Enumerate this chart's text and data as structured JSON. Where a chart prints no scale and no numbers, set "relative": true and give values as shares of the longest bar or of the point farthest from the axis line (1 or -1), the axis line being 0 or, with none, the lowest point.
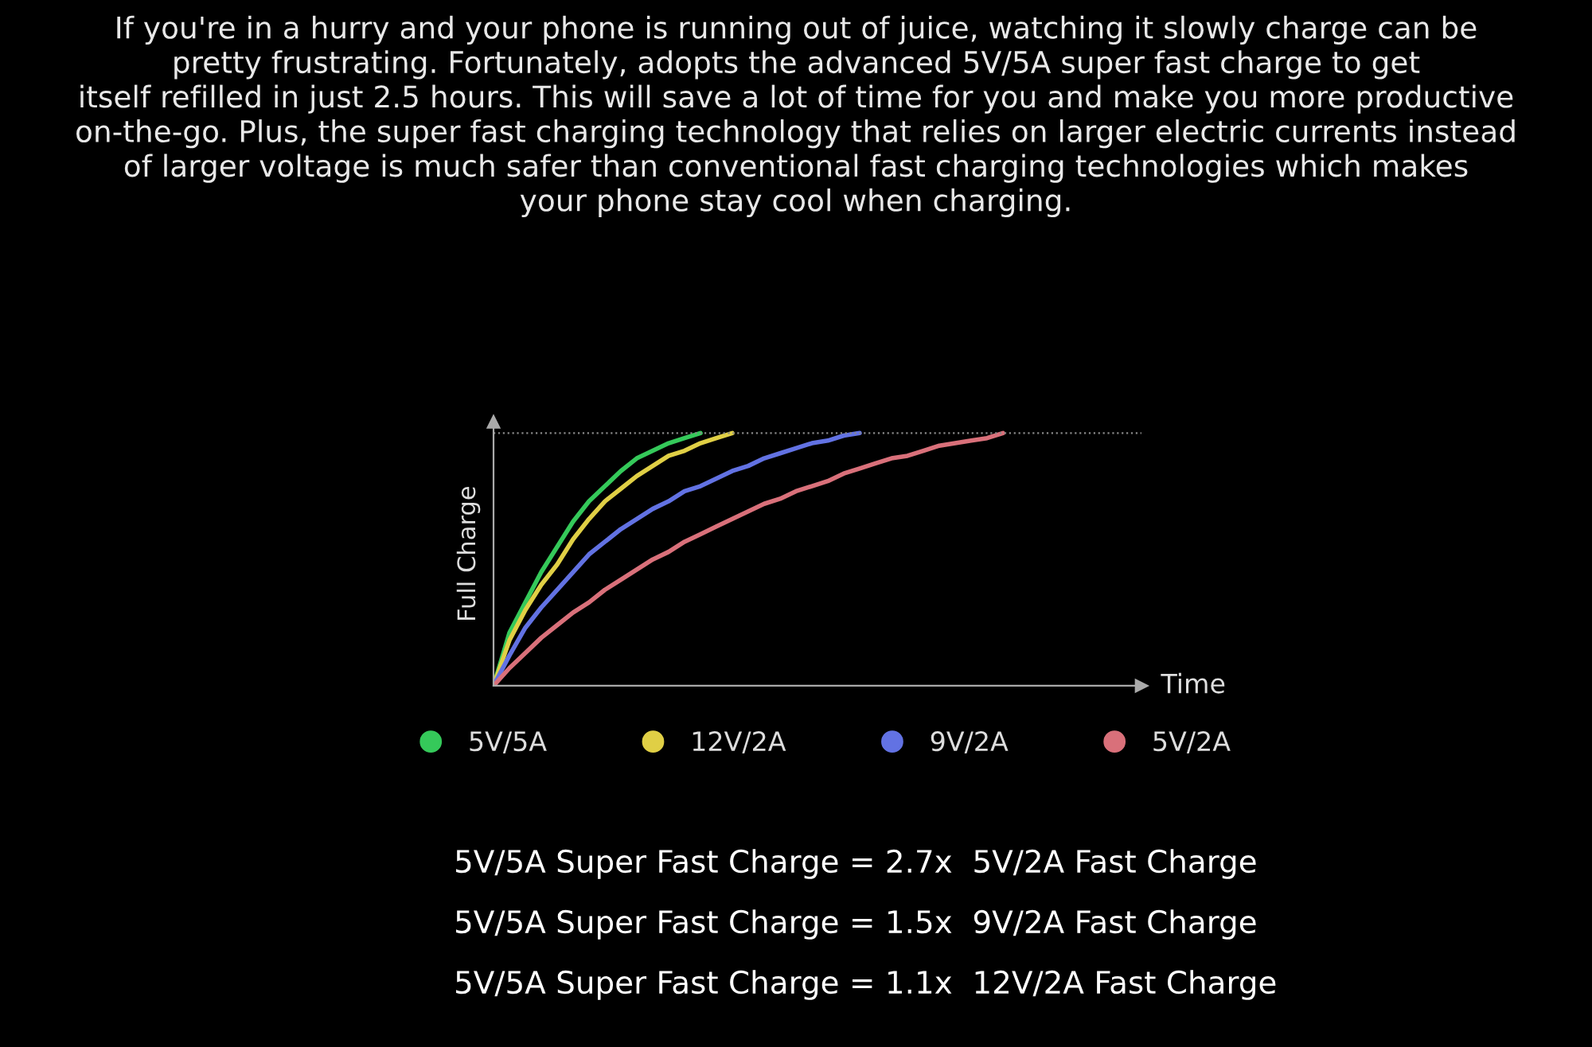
{
  "chart_data": {
    "type": "line",
    "relative": true,
    "title": "If you're in a hurry and your phone is running out of juice, watching it slowly charge can be\npretty frustrating. Fortunately, adopts the advanced 5V/5A super fast charge to get\nitself refilled in just 2.5 hours. This will save a lot of time for you and make you more productive\non-the-go. Plus, the super fast charging technology that relies on larger electric currents instead\nof larger voltage is much safer than conventional fast charging technologies which makes\nyour phone stay cool when charging.",
    "xlabel": "Time",
    "ylabel": "Full Charge",
    "categories": [
      null,
      null,
      null,
      null,
      null,
      null,
      null,
      null,
      null,
      null,
      null,
      null,
      null,
      null,
      null,
      null,
      null,
      null,
      null,
      null,
      null,
      null,
      null,
      null,
      null,
      null,
      null,
      null,
      null,
      null,
      null,
      null,
      null,
      null,
      null,
      null,
      null,
      null,
      null,
      null,
      null
    ],
    "series": [
      {
        "name": "5V/5A",
        "color": "#35c95a",
        "values": [
          0,
          0.21,
          0.33,
          0.45,
          0.55,
          0.65,
          0.73,
          0.79,
          0.85,
          0.9,
          0.93,
          0.96,
          0.98,
          1,
          null,
          null,
          null,
          null,
          null,
          null,
          null,
          null,
          null,
          null,
          null,
          null,
          null,
          null,
          null,
          null,
          null,
          null,
          null,
          null,
          null,
          null,
          null,
          null,
          null,
          null,
          null
        ]
      },
      {
        "name": "12V/2A",
        "color": "#e0cf45",
        "values": [
          0,
          0.18,
          0.3,
          0.4,
          0.48,
          0.58,
          0.66,
          0.73,
          0.78,
          0.83,
          0.87,
          0.91,
          0.93,
          0.96,
          0.98,
          1,
          null,
          null,
          null,
          null,
          null,
          null,
          null,
          null,
          null,
          null,
          null,
          null,
          null,
          null,
          null,
          null,
          null,
          null,
          null,
          null,
          null,
          null,
          null,
          null,
          null
        ]
      },
      {
        "name": "9V/2A",
        "color": "#6272e3",
        "values": [
          0,
          0.12,
          0.23,
          0.31,
          0.38,
          0.45,
          0.52,
          0.57,
          0.62,
          0.66,
          0.7,
          0.73,
          0.77,
          0.79,
          0.82,
          0.85,
          0.87,
          0.9,
          0.92,
          0.94,
          0.96,
          0.97,
          0.99,
          1,
          null,
          null,
          null,
          null,
          null,
          null,
          null,
          null,
          null,
          null,
          null,
          null,
          null,
          null,
          null,
          null,
          null
        ]
      },
      {
        "name": "5V/2A",
        "color": "#d9707a",
        "values": [
          0,
          0.07,
          0.13,
          0.19,
          0.24,
          0.29,
          0.33,
          0.38,
          0.42,
          0.46,
          0.5,
          0.53,
          0.57,
          0.6,
          0.63,
          0.66,
          0.69,
          0.72,
          0.74,
          0.77,
          0.79,
          0.81,
          0.84,
          0.86,
          0.88,
          0.9,
          0.91,
          0.93,
          0.95,
          0.96,
          0.97,
          0.98,
          1,
          null,
          null,
          null,
          null,
          null,
          null,
          null,
          null
        ]
      }
    ],
    "ref_lines": [
      {
        "axis": "y",
        "value": 1,
        "color": "#888888",
        "line_style": "dotted"
      }
    ],
    "legend": "bottom",
    "annotations": [
      "5V/5A Super Fast Charge = 2.7x  5V/2A Fast Charge",
      "5V/5A Super Fast Charge = 1.5x  9V/2A Fast Charge",
      "5V/5A Super Fast Charge = 1.1x  12V/2A Fast Charge"
    ]
  }
}
